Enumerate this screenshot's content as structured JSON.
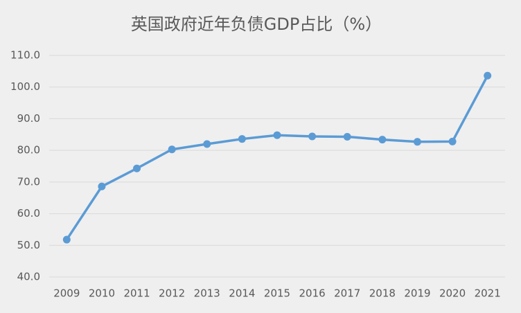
{
  "chart_data": {
    "type": "line",
    "title": "英国政府近年负债GDP占比（%）",
    "categories": [
      "2009",
      "2010",
      "2011",
      "2012",
      "2013",
      "2014",
      "2015",
      "2016",
      "2017",
      "2018",
      "2019",
      "2020",
      "2021"
    ],
    "series": [
      {
        "name": "负债GDP占比",
        "color": "#5b9bd5",
        "values": [
          51.8,
          68.6,
          74.3,
          80.3,
          82.0,
          83.6,
          84.8,
          84.4,
          84.3,
          83.4,
          82.7,
          82.8,
          103.6
        ]
      }
    ],
    "ylim": [
      40,
      110
    ],
    "yticks": [
      {
        "value": 40,
        "label": "40.0"
      },
      {
        "value": 50,
        "label": "50.0"
      },
      {
        "value": 60,
        "label": "60.0"
      },
      {
        "value": 70,
        "label": "70.0"
      },
      {
        "value": 80,
        "label": "80.0"
      },
      {
        "value": 90,
        "label": "90.0"
      },
      {
        "value": 100,
        "label": "100.0"
      },
      {
        "value": 110,
        "label": "110.0"
      }
    ],
    "grid": true
  }
}
